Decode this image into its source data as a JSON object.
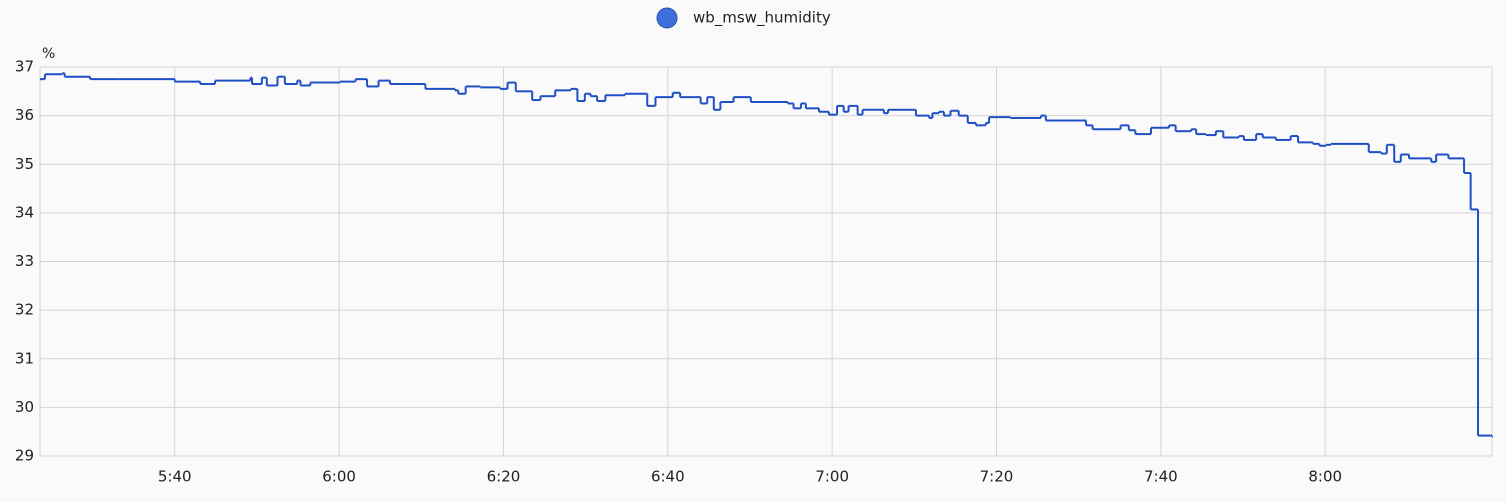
{
  "chart_data": {
    "type": "step-line",
    "y_unit": "%",
    "legend_position": "top",
    "grid": true,
    "series": [
      {
        "name": "wb_msw_humidity",
        "color": "#1f4fc4",
        "marker_color": "#3f6fdc",
        "x": [
          323.6,
          324.2,
          326.3,
          326.6,
          329.7,
          333.3,
          340.0,
          343.1,
          344.9,
          349.2,
          349.4,
          350.2,
          350.6,
          351.2,
          352.5,
          353.4,
          354.9,
          355.3,
          356.5,
          360.1,
          362.0,
          363.4,
          364.8,
          366.2,
          370.5,
          374.1,
          374.5,
          375.4,
          377.2,
          379.6,
          380.5,
          381.5,
          382.7,
          383.5,
          384.5,
          386.3,
          388.2,
          389.0,
          389.9,
          390.6,
          391.4,
          392.4,
          394.8,
          397.5,
          398.5,
          400.6,
          401.5,
          403.4,
          404.0,
          404.8,
          405.6,
          406.4,
          408.0,
          410.1,
          414.6,
          415.3,
          416.2,
          416.8,
          418.4,
          419.6,
          420.6,
          421.4,
          422.0,
          423.1,
          423.7,
          426.3,
          426.8,
          428.3,
          430.2,
          431.8,
          432.2,
          433.0,
          433.6,
          434.4,
          435.4,
          436.5,
          437.5,
          438.7,
          439.1,
          441.7,
          445.4,
          446.0,
          450.9,
          451.7,
          455.1,
          456.1,
          456.9,
          458.8,
          461.0,
          461.8,
          463.7,
          464.3,
          465.5,
          466.7,
          467.6,
          469.5,
          470.1,
          471.6,
          472.4,
          474.0,
          475.8,
          476.7,
          478.5,
          479.3,
          480.1,
          480.7,
          485.3,
          486.8,
          487.5,
          488.4,
          489.2,
          490.2,
          492.9,
          493.5,
          495.0,
          496.9,
          497.7,
          498.6,
          500.3
        ],
        "values": [
          36.75,
          36.85,
          36.87,
          36.8,
          36.75,
          36.75,
          36.7,
          36.65,
          36.72,
          36.78,
          36.65,
          36.65,
          36.78,
          36.62,
          36.8,
          36.65,
          36.72,
          36.62,
          36.68,
          36.7,
          36.75,
          36.6,
          36.72,
          36.65,
          36.55,
          36.52,
          36.45,
          36.6,
          36.58,
          36.55,
          36.68,
          36.5,
          36.5,
          36.32,
          36.4,
          36.52,
          36.55,
          36.3,
          36.45,
          36.4,
          36.3,
          36.42,
          36.45,
          36.2,
          36.38,
          36.47,
          36.38,
          36.38,
          36.25,
          36.38,
          36.12,
          36.28,
          36.38,
          36.28,
          36.25,
          36.15,
          36.25,
          36.15,
          36.08,
          36.02,
          36.2,
          36.08,
          36.2,
          36.02,
          36.12,
          36.05,
          36.12,
          36.12,
          36.0,
          35.95,
          36.05,
          36.08,
          36.0,
          36.1,
          36.0,
          35.85,
          35.8,
          35.85,
          35.97,
          35.95,
          36.0,
          35.9,
          35.8,
          35.72,
          35.8,
          35.7,
          35.62,
          35.75,
          35.8,
          35.68,
          35.72,
          35.62,
          35.6,
          35.68,
          35.55,
          35.58,
          35.5,
          35.62,
          35.55,
          35.5,
          35.58,
          35.45,
          35.42,
          35.38,
          35.4,
          35.42,
          35.25,
          35.22,
          35.4,
          35.05,
          35.2,
          35.12,
          35.05,
          35.2,
          35.12,
          34.82,
          34.07,
          29.42,
          29.4
        ]
      }
    ],
    "xlim": [
      323.6,
      500.3
    ],
    "xticks": [
      {
        "value": 340,
        "label": "5:40"
      },
      {
        "value": 360,
        "label": "6:00"
      },
      {
        "value": 380,
        "label": "6:20"
      },
      {
        "value": 400,
        "label": "6:40"
      },
      {
        "value": 420,
        "label": "7:00"
      },
      {
        "value": 440,
        "label": "7:20"
      },
      {
        "value": 460,
        "label": "7:40"
      },
      {
        "value": 480,
        "label": "8:00"
      }
    ],
    "ylim": [
      29,
      37
    ],
    "yticks": [
      29,
      30,
      31,
      32,
      33,
      34,
      35,
      36,
      37
    ]
  }
}
